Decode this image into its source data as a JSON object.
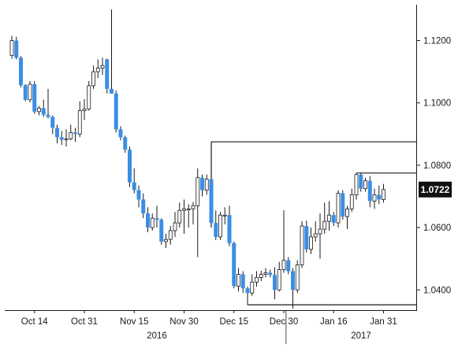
{
  "chart_data": {
    "type": "candlestick",
    "title": "",
    "xlabel": "",
    "ylabel": "",
    "ylim": [
      1.0335,
      1.1315
    ],
    "grid": false,
    "colors": {
      "up": "#ffffff",
      "down": "#3a8ee6",
      "outline": "#1a1a1a",
      "badge": "#111111"
    },
    "y_ticks": [
      {
        "value": 1.12,
        "label": "1.1200"
      },
      {
        "value": 1.1,
        "label": "1.1000"
      },
      {
        "value": 1.08,
        "label": "1.0800"
      },
      {
        "value": 1.06,
        "label": "1.0600"
      },
      {
        "value": 1.04,
        "label": "1.0400"
      }
    ],
    "x_ticks": [
      "Oct 14",
      "Oct 31",
      "Nov 15",
      "Nov 30",
      "Dec 15",
      "Dec 30",
      "Jan 16",
      "Jan 31"
    ],
    "years": [
      "2016",
      "2017"
    ],
    "last_price": {
      "value": 1.0722,
      "label": "1.0722"
    },
    "annotations": [
      {
        "type": "horizontal",
        "value": 1.0875
      },
      {
        "type": "horizontal",
        "value": 1.0775
      },
      {
        "type": "horizontal",
        "value": 1.0352
      }
    ],
    "candles": [
      {
        "date": "Oct 7",
        "open": 1.1152,
        "high": 1.1215,
        "low": 1.1142,
        "close": 1.12
      },
      {
        "date": "Oct 10",
        "open": 1.12,
        "high": 1.1212,
        "low": 1.114,
        "close": 1.1145
      },
      {
        "date": "Oct 11",
        "open": 1.1145,
        "high": 1.115,
        "low": 1.105,
        "close": 1.1057
      },
      {
        "date": "Oct 12",
        "open": 1.1057,
        "high": 1.106,
        "low": 1.1005,
        "close": 1.101
      },
      {
        "date": "Oct 13",
        "open": 1.101,
        "high": 1.107,
        "low": 1.1002,
        "close": 1.106
      },
      {
        "date": "Oct 14",
        "open": 1.106,
        "high": 1.107,
        "low": 1.0965,
        "close": 1.0972
      },
      {
        "date": "Oct 17",
        "open": 1.0972,
        "high": 1.099,
        "low": 1.096,
        "close": 1.0983
      },
      {
        "date": "Oct 18",
        "open": 1.0983,
        "high": 1.101,
        "low": 1.0955,
        "close": 1.0962
      },
      {
        "date": "Oct 19",
        "open": 1.0962,
        "high": 1.1045,
        "low": 1.095,
        "close": 1.0955
      },
      {
        "date": "Oct 20",
        "open": 1.0955,
        "high": 1.096,
        "low": 1.09,
        "close": 1.092
      },
      {
        "date": "Oct 21",
        "open": 1.092,
        "high": 1.093,
        "low": 1.087,
        "close": 1.089
      },
      {
        "date": "Oct 24",
        "open": 1.089,
        "high": 1.091,
        "low": 1.0865,
        "close": 1.0882
      },
      {
        "date": "Oct 25",
        "open": 1.0882,
        "high": 1.0915,
        "low": 1.086,
        "close": 1.0885
      },
      {
        "date": "Oct 26",
        "open": 1.0885,
        "high": 1.093,
        "low": 1.088,
        "close": 1.0905
      },
      {
        "date": "Oct 27",
        "open": 1.0905,
        "high": 1.092,
        "low": 1.0875,
        "close": 1.09
      },
      {
        "date": "Oct 28",
        "open": 1.09,
        "high": 1.1005,
        "low": 1.089,
        "close": 1.0975
      },
      {
        "date": "Oct 31",
        "open": 1.0975,
        "high": 1.1012,
        "low": 1.0945,
        "close": 1.098
      },
      {
        "date": "Nov 1",
        "open": 1.098,
        "high": 1.107,
        "low": 1.0975,
        "close": 1.1055
      },
      {
        "date": "Nov 2",
        "open": 1.1055,
        "high": 1.112,
        "low": 1.1045,
        "close": 1.11
      },
      {
        "date": "Nov 3",
        "open": 1.11,
        "high": 1.114,
        "low": 1.108,
        "close": 1.1112
      },
      {
        "date": "Nov 4",
        "open": 1.1112,
        "high": 1.1145,
        "low": 1.109,
        "close": 1.112
      },
      {
        "date": "Nov 7",
        "open": 1.114,
        "high": 1.1142,
        "low": 1.103,
        "close": 1.1045
      },
      {
        "date": "Nov 8",
        "open": 1.1045,
        "high": 1.13,
        "low": 1.103,
        "close": 1.103
      },
      {
        "date": "Nov 9",
        "open": 1.103,
        "high": 1.104,
        "low": 1.0905,
        "close": 1.0915
      },
      {
        "date": "Nov 10",
        "open": 1.0915,
        "high": 1.0925,
        "low": 1.088,
        "close": 1.089
      },
      {
        "date": "Nov 11",
        "open": 1.089,
        "high": 1.0895,
        "low": 1.084,
        "close": 1.085
      },
      {
        "date": "Nov 14",
        "open": 1.085,
        "high": 1.086,
        "low": 1.073,
        "close": 1.0745
      },
      {
        "date": "Nov 15",
        "open": 1.0745,
        "high": 1.079,
        "low": 1.071,
        "close": 1.072
      },
      {
        "date": "Nov 16",
        "open": 1.072,
        "high": 1.0735,
        "low": 1.0665,
        "close": 1.069
      },
      {
        "date": "Nov 17",
        "open": 1.069,
        "high": 1.071,
        "low": 1.063,
        "close": 1.0645
      },
      {
        "date": "Nov 18",
        "open": 1.0645,
        "high": 1.0665,
        "low": 1.0585,
        "close": 1.06
      },
      {
        "date": "Nov 21",
        "open": 1.06,
        "high": 1.0645,
        "low": 1.059,
        "close": 1.063
      },
      {
        "date": "Nov 22",
        "open": 1.063,
        "high": 1.067,
        "low": 1.06,
        "close": 1.0625
      },
      {
        "date": "Nov 23",
        "open": 1.0625,
        "high": 1.063,
        "low": 1.0545,
        "close": 1.0555
      },
      {
        "date": "Nov 24",
        "open": 1.0555,
        "high": 1.058,
        "low": 1.0535,
        "close": 1.0562
      },
      {
        "date": "Nov 25",
        "open": 1.0562,
        "high": 1.0605,
        "low": 1.0545,
        "close": 1.059
      },
      {
        "date": "Nov 28",
        "open": 1.059,
        "high": 1.065,
        "low": 1.057,
        "close": 1.0615
      },
      {
        "date": "Nov 29",
        "open": 1.0615,
        "high": 1.068,
        "low": 1.06,
        "close": 1.0655
      },
      {
        "date": "Nov 30",
        "open": 1.0655,
        "high": 1.069,
        "low": 1.058,
        "close": 1.066
      },
      {
        "date": "Dec 1",
        "open": 1.066,
        "high": 1.0675,
        "low": 1.06,
        "close": 1.066
      },
      {
        "date": "Dec 2",
        "open": 1.066,
        "high": 1.0682,
        "low": 1.061,
        "close": 1.067
      },
      {
        "date": "Dec 5",
        "open": 1.067,
        "high": 1.079,
        "low": 1.0505,
        "close": 1.076
      },
      {
        "date": "Dec 6",
        "open": 1.076,
        "high": 1.077,
        "low": 1.07,
        "close": 1.072
      },
      {
        "date": "Dec 7",
        "open": 1.072,
        "high": 1.077,
        "low": 1.0705,
        "close": 1.0755
      },
      {
        "date": "Dec 8",
        "open": 1.0755,
        "high": 1.0875,
        "low": 1.06,
        "close": 1.0615
      },
      {
        "date": "Dec 9",
        "open": 1.0615,
        "high": 1.0655,
        "low": 1.056,
        "close": 1.057
      },
      {
        "date": "Dec 12",
        "open": 1.057,
        "high": 1.065,
        "low": 1.056,
        "close": 1.064
      },
      {
        "date": "Dec 13",
        "open": 1.064,
        "high": 1.0665,
        "low": 1.061,
        "close": 1.064
      },
      {
        "date": "Dec 14",
        "open": 1.064,
        "high": 1.067,
        "low": 1.054,
        "close": 1.055
      },
      {
        "date": "Dec 15",
        "open": 1.055,
        "high": 1.0555,
        "low": 1.0405,
        "close": 1.0412
      },
      {
        "date": "Dec 16",
        "open": 1.0412,
        "high": 1.047,
        "low": 1.0395,
        "close": 1.045
      },
      {
        "date": "Dec 19",
        "open": 1.045,
        "high": 1.046,
        "low": 1.039,
        "close": 1.0405
      },
      {
        "date": "Dec 20",
        "open": 1.0405,
        "high": 1.041,
        "low": 1.0352,
        "close": 1.039
      },
      {
        "date": "Dec 21",
        "open": 1.039,
        "high": 1.045,
        "low": 1.038,
        "close": 1.0425
      },
      {
        "date": "Dec 22",
        "open": 1.0425,
        "high": 1.046,
        "low": 1.041,
        "close": 1.044
      },
      {
        "date": "Dec 23",
        "open": 1.044,
        "high": 1.0462,
        "low": 1.0428,
        "close": 1.045
      },
      {
        "date": "Dec 26",
        "open": 1.045,
        "high": 1.047,
        "low": 1.044,
        "close": 1.0455
      },
      {
        "date": "Dec 27",
        "open": 1.0455,
        "high": 1.0465,
        "low": 1.044,
        "close": 1.0448
      },
      {
        "date": "Dec 28",
        "open": 1.0448,
        "high": 1.0472,
        "low": 1.037,
        "close": 1.04
      },
      {
        "date": "Dec 29",
        "open": 1.04,
        "high": 1.049,
        "low": 1.0395,
        "close": 1.0465
      },
      {
        "date": "Dec 30",
        "open": 1.0465,
        "high": 1.0655,
        "low": 1.0455,
        "close": 1.0495
      },
      {
        "date": "Jan 2",
        "open": 1.0495,
        "high": 1.0505,
        "low": 1.045,
        "close": 1.046
      },
      {
        "date": "Jan 3",
        "open": 1.046,
        "high": 1.047,
        "low": 1.034,
        "close": 1.04
      },
      {
        "date": "Jan 4",
        "open": 1.04,
        "high": 1.0495,
        "low": 1.039,
        "close": 1.048
      },
      {
        "date": "Jan 5",
        "open": 1.048,
        "high": 1.062,
        "low": 1.047,
        "close": 1.0605
      },
      {
        "date": "Jan 6",
        "open": 1.0605,
        "high": 1.0622,
        "low": 1.052,
        "close": 1.053
      },
      {
        "date": "Jan 9",
        "open": 1.053,
        "high": 1.06,
        "low": 1.0515,
        "close": 1.057
      },
      {
        "date": "Jan 10",
        "open": 1.057,
        "high": 1.062,
        "low": 1.0555,
        "close": 1.058
      },
      {
        "date": "Jan 11",
        "open": 1.058,
        "high": 1.0645,
        "low": 1.05,
        "close": 1.0595
      },
      {
        "date": "Jan 12",
        "open": 1.0595,
        "high": 1.068,
        "low": 1.058,
        "close": 1.062
      },
      {
        "date": "Jan 13",
        "open": 1.062,
        "high": 1.0685,
        "low": 1.059,
        "close": 1.064
      },
      {
        "date": "Jan 16",
        "open": 1.064,
        "high": 1.065,
        "low": 1.0605,
        "close": 1.0615
      },
      {
        "date": "Jan 17",
        "open": 1.0615,
        "high": 1.072,
        "low": 1.06,
        "close": 1.071
      },
      {
        "date": "Jan 18",
        "open": 1.071,
        "high": 1.072,
        "low": 1.0625,
        "close": 1.0635
      },
      {
        "date": "Jan 19",
        "open": 1.0635,
        "high": 1.067,
        "low": 1.0595,
        "close": 1.066
      },
      {
        "date": "Jan 20",
        "open": 1.066,
        "high": 1.0725,
        "low": 1.065,
        "close": 1.0705
      },
      {
        "date": "Jan 23",
        "open": 1.0705,
        "high": 1.0775,
        "low": 1.069,
        "close": 1.077
      },
      {
        "date": "Jan 24",
        "open": 1.077,
        "high": 1.0775,
        "low": 1.0715,
        "close": 1.0725
      },
      {
        "date": "Jan 25",
        "open": 1.0725,
        "high": 1.076,
        "low": 1.0715,
        "close": 1.075
      },
      {
        "date": "Jan 26",
        "open": 1.075,
        "high": 1.0765,
        "low": 1.0665,
        "close": 1.0685
      },
      {
        "date": "Jan 27",
        "open": 1.0685,
        "high": 1.0725,
        "low": 1.066,
        "close": 1.0705
      },
      {
        "date": "Jan 30",
        "open": 1.0705,
        "high": 1.0735,
        "low": 1.0675,
        "close": 1.069
      },
      {
        "date": "Jan 31",
        "open": 1.069,
        "high": 1.074,
        "low": 1.068,
        "close": 1.0722
      }
    ]
  }
}
